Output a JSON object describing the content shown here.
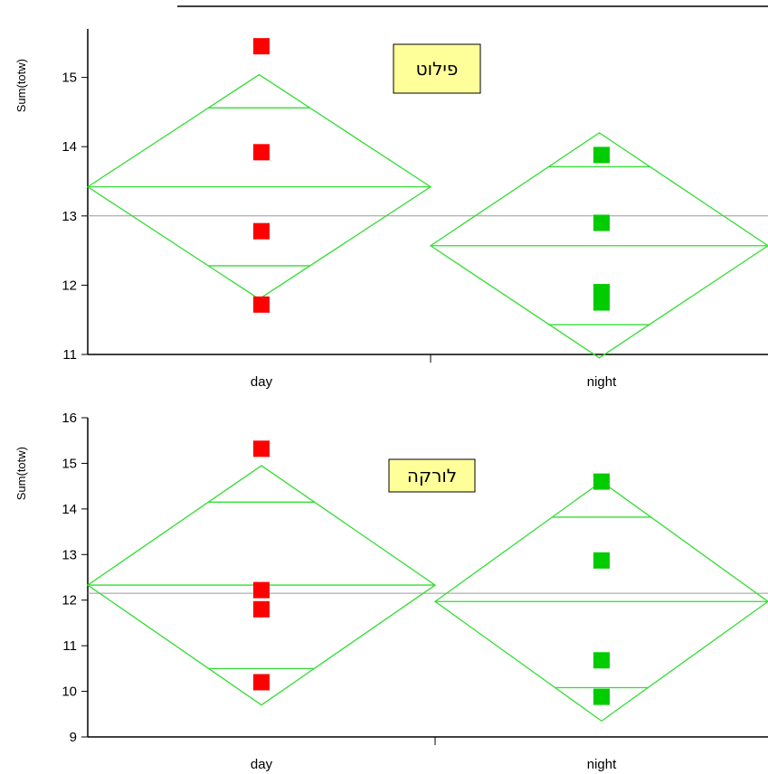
{
  "chart_data": [
    {
      "type": "scatter",
      "ylabel": "Sum(totw)",
      "categories": [
        "day",
        "night"
      ],
      "ylim": [
        11,
        15.7
      ],
      "yticks": [
        11,
        12,
        13,
        14,
        15
      ],
      "grand_mean": 13.0,
      "annotation": "פילוט",
      "colors": {
        "day": "#ff0000",
        "night": "#00cc00",
        "diamond": "#33dd33",
        "mean_line": "#999999"
      },
      "groups": [
        {
          "category": "day",
          "points": [
            15.45,
            13.92,
            12.78,
            11.72
          ],
          "mean": 13.42,
          "ci": [
            11.8,
            15.04
          ],
          "overlap": [
            12.28,
            14.56
          ]
        },
        {
          "category": "night",
          "points": [
            13.88,
            12.9,
            11.9,
            11.75
          ],
          "mean": 12.57,
          "ci": [
            10.95,
            14.2
          ],
          "overlap": [
            11.43,
            13.71
          ]
        }
      ]
    },
    {
      "type": "scatter",
      "ylabel": "Sum(totw)",
      "categories": [
        "day",
        "night"
      ],
      "ylim": [
        9,
        16
      ],
      "yticks": [
        9,
        10,
        11,
        12,
        13,
        14,
        15,
        16
      ],
      "grand_mean": 12.15,
      "annotation": "לורקה",
      "colors": {
        "day": "#ff0000",
        "night": "#00cc00",
        "diamond": "#33dd33",
        "mean_line": "#999999"
      },
      "groups": [
        {
          "category": "day",
          "points": [
            15.32,
            12.22,
            11.8,
            10.2
          ],
          "mean": 12.33,
          "ci": [
            9.7,
            14.95
          ],
          "overlap": [
            10.5,
            14.15
          ]
        },
        {
          "category": "night",
          "points": [
            14.6,
            12.87,
            10.68,
            9.88
          ],
          "mean": 11.97,
          "ci": [
            9.35,
            14.6
          ],
          "overlap": [
            10.08,
            13.82
          ]
        }
      ]
    }
  ]
}
